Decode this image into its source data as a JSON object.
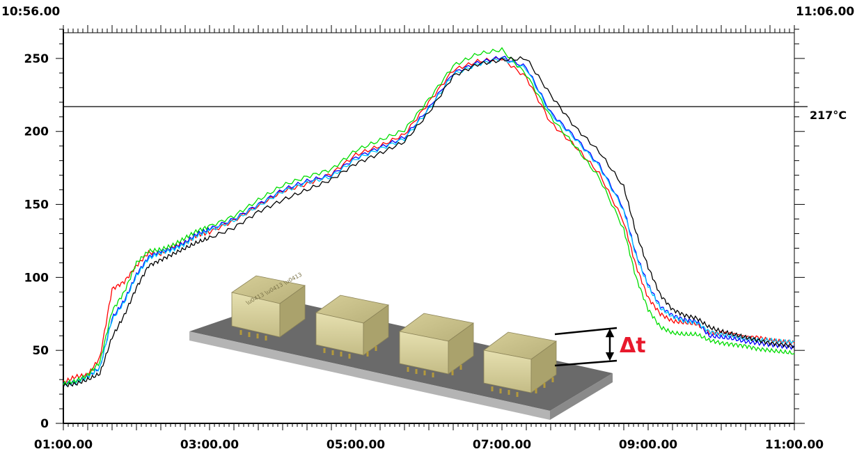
{
  "chart_data": {
    "type": "line",
    "top_left_time": "10:56.00",
    "top_right_time": "11:06.00",
    "x_tick_labels": [
      "01:00.00",
      "03:00.00",
      "05:00.00",
      "07:00.00",
      "09:00.00",
      "11:00.00"
    ],
    "y_tick_labels": [
      "0",
      "50",
      "100",
      "150",
      "200",
      "250"
    ],
    "xlim": [
      60,
      660
    ],
    "ylim": [
      0,
      270
    ],
    "grid": false,
    "reference_line": {
      "value": 217,
      "label": "217°C"
    },
    "inset_label": "Δt",
    "series": [
      {
        "color": "#ff0000",
        "x": [
          60,
          70,
          80,
          90,
          100,
          110,
          120,
          130,
          140,
          150,
          160,
          170,
          180,
          200,
          220,
          240,
          260,
          280,
          300,
          320,
          340,
          360,
          380,
          400,
          420,
          440,
          460,
          480,
          500,
          520,
          530,
          540,
          550,
          560,
          570,
          580,
          590,
          600,
          610,
          620,
          630,
          640,
          650,
          660
        ],
        "y": [
          28,
          32,
          33,
          45,
          92,
          97,
          108,
          117,
          116,
          121,
          124,
          129,
          131,
          139,
          149,
          159,
          164,
          171,
          184,
          190,
          198,
          220,
          242,
          248,
          250,
          237,
          206,
          190,
          171,
          138,
          108,
          86,
          75,
          70,
          69,
          68,
          62,
          62,
          61,
          59,
          59,
          57,
          56,
          55
        ]
      },
      {
        "color": "#0000ff",
        "x": [
          60,
          70,
          80,
          90,
          100,
          110,
          120,
          130,
          140,
          150,
          160,
          170,
          180,
          200,
          220,
          240,
          260,
          280,
          300,
          320,
          340,
          360,
          380,
          400,
          420,
          440,
          460,
          480,
          500,
          520,
          530,
          540,
          550,
          560,
          570,
          580,
          590,
          600,
          610,
          620,
          630,
          640,
          650,
          660
        ],
        "y": [
          27,
          28,
          32,
          38,
          72,
          84,
          102,
          114,
          118,
          120,
          124,
          130,
          133,
          140,
          150,
          160,
          166,
          170,
          182,
          189,
          196,
          216,
          240,
          247,
          251,
          244,
          213,
          196,
          177,
          147,
          116,
          95,
          80,
          74,
          71,
          70,
          60,
          59,
          58,
          56,
          55,
          54,
          53,
          52
        ]
      },
      {
        "color": "#00c8ff",
        "x": [
          60,
          70,
          80,
          90,
          100,
          110,
          120,
          130,
          140,
          150,
          160,
          170,
          180,
          200,
          220,
          240,
          260,
          280,
          300,
          320,
          340,
          360,
          380,
          400,
          420,
          440,
          460,
          480,
          500,
          520,
          530,
          540,
          550,
          560,
          570,
          580,
          590,
          600,
          610,
          620,
          630,
          640,
          650,
          660
        ],
        "y": [
          27,
          28,
          32,
          38,
          71,
          83,
          101,
          113,
          117,
          119,
          123,
          129,
          132,
          139,
          149,
          159,
          165,
          169,
          181,
          188,
          195,
          215,
          239,
          246,
          250,
          243,
          212,
          195,
          176,
          146,
          115,
          94,
          79,
          73,
          70,
          69,
          63,
          61,
          60,
          58,
          57,
          57,
          56,
          56
        ]
      },
      {
        "color": "#00dd00",
        "x": [
          60,
          70,
          80,
          90,
          100,
          110,
          120,
          130,
          140,
          150,
          160,
          170,
          180,
          200,
          220,
          240,
          260,
          280,
          300,
          320,
          340,
          360,
          380,
          400,
          420,
          440,
          460,
          480,
          500,
          520,
          530,
          540,
          550,
          560,
          570,
          580,
          590,
          600,
          610,
          620,
          630,
          640,
          650,
          660
        ],
        "y": [
          27,
          29,
          33,
          42,
          77,
          90,
          110,
          118,
          119,
          122,
          127,
          132,
          135,
          142,
          153,
          163,
          169,
          174,
          187,
          194,
          201,
          222,
          245,
          253,
          256,
          239,
          210,
          190,
          168,
          133,
          100,
          78,
          66,
          62,
          61,
          61,
          57,
          55,
          54,
          53,
          51,
          50,
          49,
          48
        ]
      },
      {
        "color": "#000000",
        "x": [
          60,
          70,
          80,
          90,
          100,
          110,
          120,
          130,
          140,
          150,
          160,
          170,
          180,
          200,
          220,
          240,
          260,
          280,
          300,
          320,
          340,
          360,
          380,
          400,
          420,
          440,
          460,
          480,
          500,
          520,
          530,
          540,
          550,
          560,
          570,
          580,
          590,
          600,
          610,
          620,
          630,
          640,
          650,
          660
        ],
        "y": [
          26,
          27,
          30,
          34,
          59,
          74,
          93,
          108,
          112,
          116,
          120,
          124,
          127,
          134,
          145,
          153,
          160,
          167,
          178,
          185,
          193,
          213,
          238,
          246,
          249,
          250,
          225,
          203,
          186,
          162,
          131,
          107,
          88,
          78,
          74,
          72,
          66,
          63,
          61,
          59,
          57,
          55,
          54,
          53
        ]
      }
    ]
  }
}
